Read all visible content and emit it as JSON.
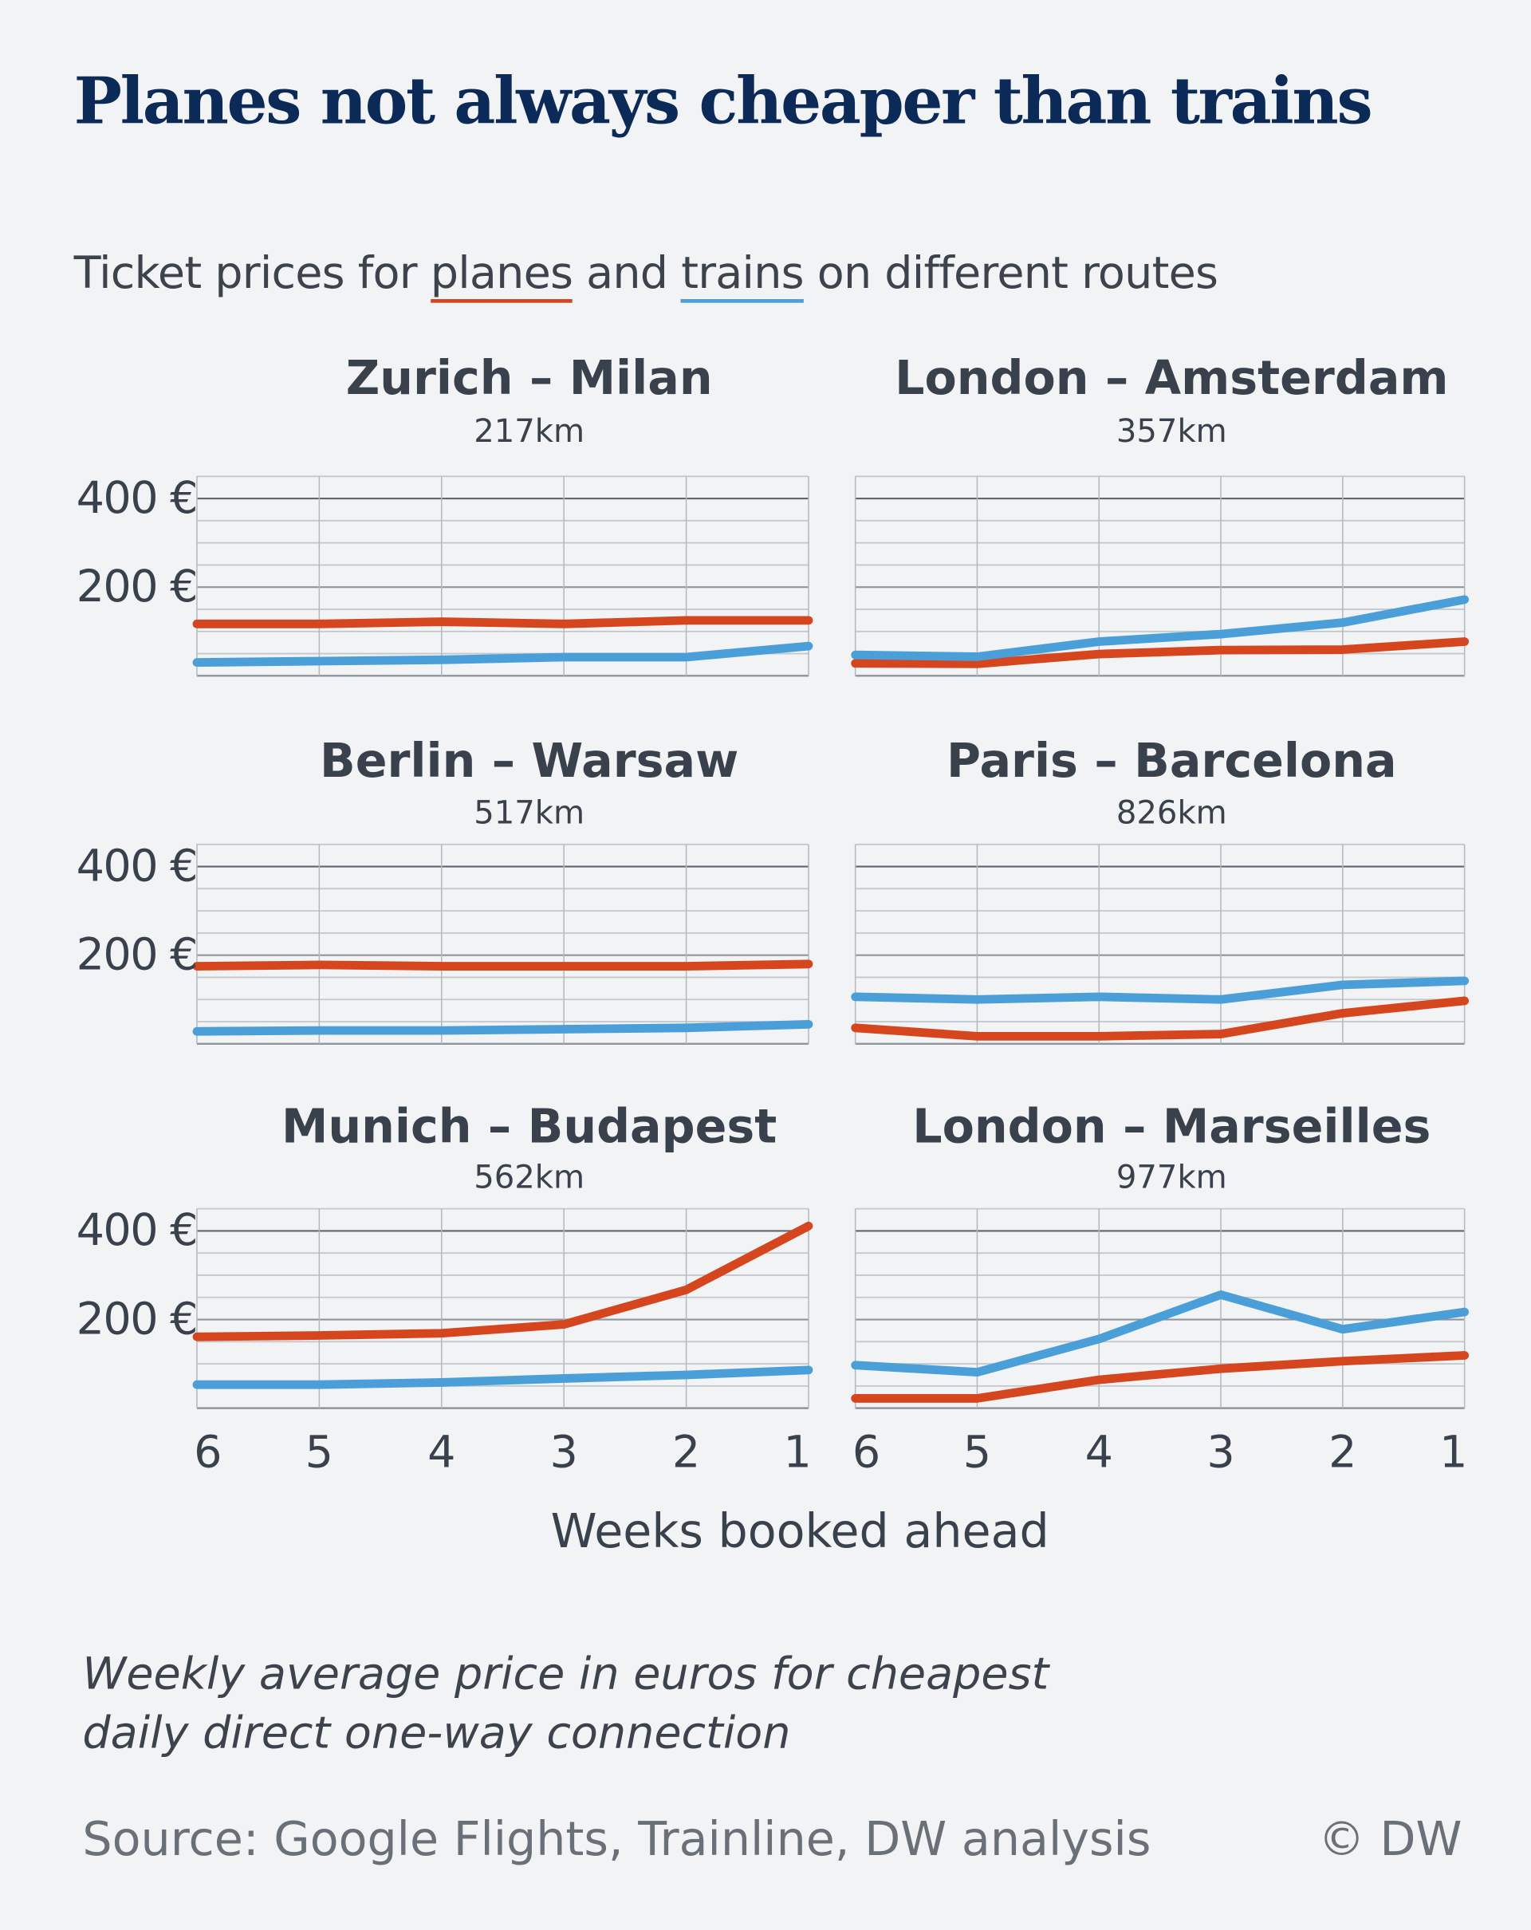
{
  "title": "Planes not always cheaper than trains",
  "subtitle": {
    "prefix": "Ticket prices for ",
    "planes": "planes",
    "and": " and ",
    "trains": "trains",
    "suffix": " on different routes"
  },
  "colors": {
    "plane": "#d5461f",
    "train": "#4a9fd8",
    "title": "#0b2a58",
    "background": "#f2f3f5"
  },
  "chart_data": [
    {
      "type": "line",
      "title": "Zurich – Milan",
      "distance": "217km",
      "x": [
        6,
        5,
        4,
        3,
        2,
        1
      ],
      "ylim": [
        0,
        450
      ],
      "series": [
        {
          "name": "planes",
          "values": [
            117,
            117,
            122,
            117,
            125,
            125
          ]
        },
        {
          "name": "trains",
          "values": [
            30,
            33,
            36,
            42,
            42,
            67
          ]
        }
      ]
    },
    {
      "type": "line",
      "title": "London – Amsterdam",
      "distance": "357km",
      "x": [
        6,
        5,
        4,
        3,
        2,
        1
      ],
      "ylim": [
        0,
        450
      ],
      "series": [
        {
          "name": "planes",
          "values": [
            28,
            27,
            49,
            58,
            59,
            77
          ]
        },
        {
          "name": "trains",
          "values": [
            47,
            43,
            77,
            94,
            120,
            172
          ]
        }
      ]
    },
    {
      "type": "line",
      "title": "Berlin – Warsaw",
      "distance": "517km",
      "x": [
        6,
        5,
        4,
        3,
        2,
        1
      ],
      "ylim": [
        0,
        450
      ],
      "series": [
        {
          "name": "planes",
          "values": [
            175,
            178,
            175,
            175,
            175,
            180
          ]
        },
        {
          "name": "trains",
          "values": [
            28,
            30,
            30,
            33,
            36,
            44
          ]
        }
      ]
    },
    {
      "type": "line",
      "title": "Paris – Barcelona",
      "distance": "826km",
      "x": [
        6,
        5,
        4,
        3,
        2,
        1
      ],
      "ylim": [
        0,
        450
      ],
      "series": [
        {
          "name": "planes",
          "values": [
            36,
            17,
            17,
            22,
            69,
            97
          ]
        },
        {
          "name": "trains",
          "values": [
            106,
            100,
            106,
            100,
            133,
            142
          ]
        }
      ]
    },
    {
      "type": "line",
      "title": "Munich – Budapest",
      "distance": "562km",
      "x": [
        6,
        5,
        4,
        3,
        2,
        1
      ],
      "ylim": [
        0,
        450
      ],
      "series": [
        {
          "name": "planes",
          "values": [
            161,
            164,
            169,
            189,
            267,
            411
          ]
        },
        {
          "name": "trains",
          "values": [
            53,
            53,
            58,
            67,
            75,
            86
          ]
        }
      ]
    },
    {
      "type": "line",
      "title": "London – Marseilles",
      "distance": "977km",
      "x": [
        6,
        5,
        4,
        3,
        2,
        1
      ],
      "ylim": [
        0,
        450
      ],
      "series": [
        {
          "name": "planes",
          "values": [
            22,
            22,
            64,
            89,
            106,
            119
          ]
        },
        {
          "name": "trains",
          "values": [
            97,
            81,
            156,
            256,
            178,
            217
          ]
        }
      ]
    }
  ],
  "y_ticks": [
    "400 €",
    "200 €"
  ],
  "x_ticks": [
    "6",
    "5",
    "4",
    "3",
    "2",
    "1"
  ],
  "xlabel": "Weeks booked ahead",
  "note": [
    "Weekly average price in euros for cheapest",
    "daily direct one-way connection"
  ],
  "source": "Source: Google Flights, Trainline, DW analysis",
  "copyright": "© DW"
}
